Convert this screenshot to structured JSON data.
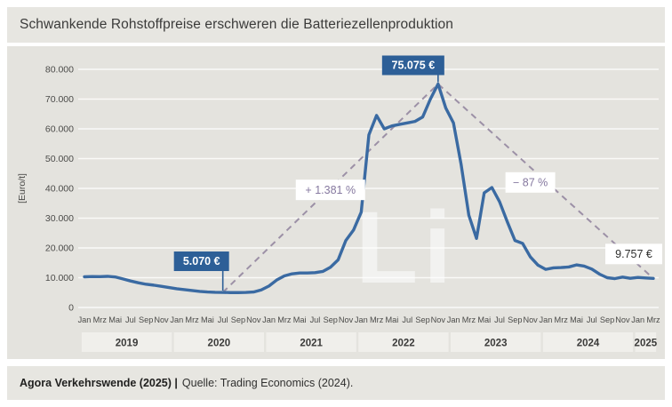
{
  "title": "Schwankende Rohstoffpreise erschweren die Batteriezellenproduktion",
  "footer": {
    "publisher": "Agora Verkehrswende (2025) |",
    "source": "Quelle: Trading Economics (2024)."
  },
  "chart_data": {
    "type": "line",
    "title": "Schwankende Rohstoffpreise erschweren die Batteriezellenproduktion",
    "ylabel": "[Euro/t]",
    "ylim": [
      0,
      80000
    ],
    "grid": true,
    "x_unit": "month",
    "x_start": "Jan 2019",
    "x_end": "Mrz 2025",
    "watermark": "Li",
    "ytick_labels": [
      "0",
      "10.000",
      "20.000",
      "30.000",
      "40.000",
      "50.000",
      "60.000",
      "70.000",
      "80.000"
    ],
    "x_month_labels": [
      "Jan",
      "Mrz",
      "Mai",
      "Jul",
      "Sep",
      "Nov"
    ],
    "years": [
      {
        "label": "2019",
        "months": 12
      },
      {
        "label": "2020",
        "months": 12
      },
      {
        "label": "2021",
        "months": 12
      },
      {
        "label": "2022",
        "months": 12
      },
      {
        "label": "2023",
        "months": 12
      },
      {
        "label": "2024",
        "months": 12
      },
      {
        "label": "2025",
        "months": 3
      }
    ],
    "values": [
      10300,
      10400,
      10350,
      10450,
      10250,
      9600,
      8900,
      8300,
      7800,
      7500,
      7100,
      6700,
      6300,
      6000,
      5700,
      5400,
      5200,
      5100,
      5070,
      5000,
      5000,
      5050,
      5200,
      5900,
      7200,
      9200,
      10600,
      11300,
      11600,
      11600,
      11700,
      12100,
      13500,
      16000,
      22500,
      26000,
      32000,
      58000,
      64500,
      60000,
      61000,
      61500,
      62000,
      62500,
      64000,
      70000,
      75075,
      67000,
      62000,
      48000,
      31000,
      23200,
      38500,
      40300,
      35500,
      28800,
      22500,
      21500,
      17000,
      14200,
      12800,
      13300,
      13400,
      13600,
      14300,
      13900,
      12900,
      11200,
      10000,
      9700,
      10200,
      9800,
      10100,
      9900,
      9757
    ],
    "trend": {
      "points": [
        {
          "month_index": 18,
          "value": 5070
        },
        {
          "month_index": 46,
          "value": 75075
        },
        {
          "month_index": 74,
          "value": 9757
        }
      ]
    },
    "annotations": [
      {
        "text": "5.070 €",
        "style": "blue-box",
        "month_index": 18,
        "value": 5070
      },
      {
        "text": "75.075 €",
        "style": "blue-box",
        "month_index": 46,
        "value": 75075
      },
      {
        "text": "+ 1.381 %",
        "style": "white-box-purple",
        "month_index": 32,
        "value": 39500
      },
      {
        "text": "− 87 %",
        "style": "white-box-purple",
        "month_index": 58,
        "value": 42000
      },
      {
        "text": "9.757 €",
        "style": "white-box-dark",
        "month_index": 74,
        "value": 9757
      }
    ],
    "colors": {
      "line": "#3a6aa2",
      "label_box": "#2d5f97",
      "trend": "#9c90a6",
      "trend_text": "#85789f",
      "grid": "#fafaf8",
      "axis_text": "#4b4b49",
      "dark_text": "#3a3a39",
      "year_box": "#f0efeb",
      "panel_bg": "#e4e3de",
      "bar_bg": "#e7e6e1",
      "watermark": "#ffffff"
    }
  }
}
